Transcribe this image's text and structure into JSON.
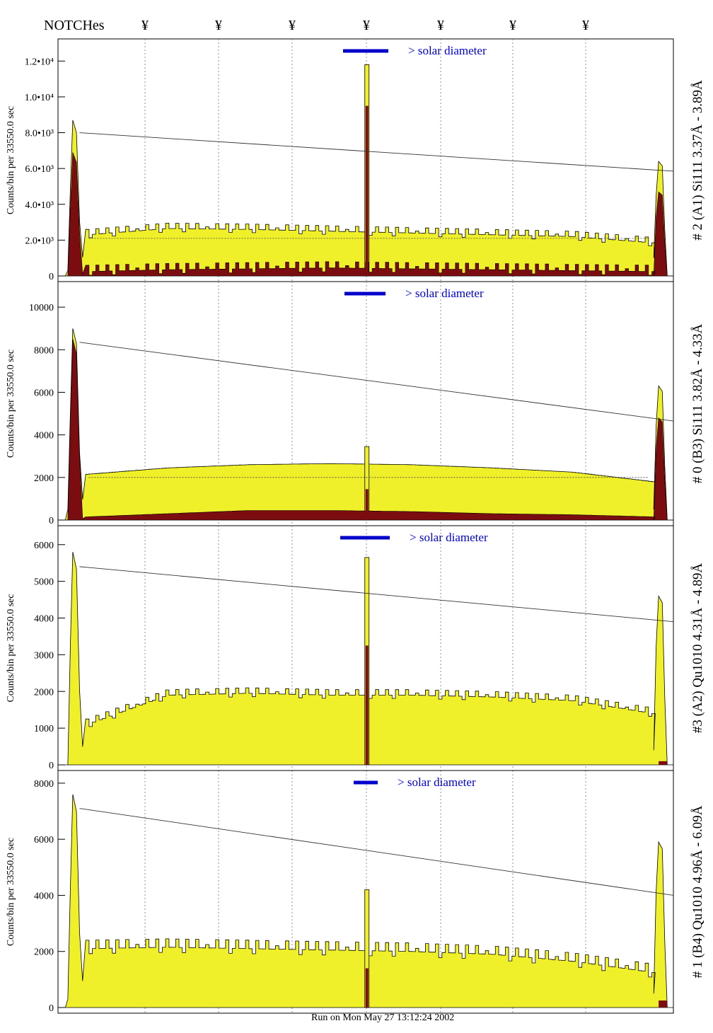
{
  "header": {
    "label": "NOTCHes",
    "marker_glyph": "¥",
    "notch_x": [
      205,
      309,
      413,
      518,
      623,
      725,
      828
    ]
  },
  "footer": {
    "text": "Run on Mon May 27 13:12:24 2002"
  },
  "colors": {
    "fill_light": "#f0f02a",
    "fill_dark": "#7b0c10",
    "annotation_blue": "#0000dd",
    "marker_blue": "#0000cc"
  },
  "annotation_text": "> solar diameter",
  "chart_data": [
    {
      "type": "area",
      "name": "panel-1",
      "ylabel": "Counts/bin per  33550.0 sec",
      "side_label": "# 2 (A1) Si111  3.37Å - 3.89Å",
      "ylim": [
        0,
        13000
      ],
      "ytick_values": [
        0,
        2000,
        4000,
        6000,
        8000,
        10000,
        12000
      ],
      "ytick_labels": [
        "0",
        "2.0•10³",
        "4.0•10³",
        "6.0•10³",
        "8.0•10³",
        "1.0•10⁴",
        "1.2•10⁴"
      ],
      "grid": true,
      "light_series": {
        "left_peak": 8700,
        "left_base": 300,
        "plateau": [
          2300,
          2650,
          2600,
          2500,
          2400,
          2300,
          2200,
          1850
        ],
        "right_peak": 6400,
        "right_base": 1000,
        "center_spike": 11800,
        "tooth": 300
      },
      "dark_series": {
        "left_peak": 6900,
        "left_base": 0,
        "plateau": [
          250,
          350,
          400,
          450,
          400,
          350,
          300,
          250
        ],
        "right_peak": 4700,
        "right_base": 0,
        "center_spike": 9500,
        "tooth": 350
      },
      "fit_line": [
        8000,
        5850
      ],
      "dotted_level": 2100
    },
    {
      "type": "area",
      "name": "panel-2",
      "ylabel": "Counts/bin per  33550.0 sec",
      "side_label": "# 0 (B3) Si111  3.82Å - 4.33Å",
      "ylim": [
        0,
        11000
      ],
      "ytick_values": [
        0,
        2000,
        4000,
        6000,
        8000,
        10000
      ],
      "ytick_labels": [
        "0",
        "2000",
        "4000",
        "6000",
        "8000",
        "10000"
      ],
      "grid": true,
      "light_series": {
        "left_peak": 9000,
        "left_base": 500,
        "plateau": [
          2150,
          2450,
          2600,
          2650,
          2600,
          2450,
          2250,
          1800
        ],
        "right_peak": 6300,
        "right_base": 500,
        "center_spike": 3450,
        "tooth": 0
      },
      "dark_series": {
        "left_peak": 8500,
        "left_base": 0,
        "plateau": [
          150,
          300,
          450,
          450,
          400,
          300,
          250,
          150
        ],
        "right_peak": 4800,
        "right_base": 0,
        "center_spike": 1450,
        "tooth": 0
      },
      "fit_line": [
        8350,
        4650
      ],
      "dotted_level": 2000
    },
    {
      "type": "area",
      "name": "panel-3",
      "ylabel": "Counts/bin per  33550.0 sec",
      "side_label": "#3 (A2) Qu1010  4.31Å - 4.89Å",
      "ylim": [
        0,
        6400
      ],
      "ytick_values": [
        0,
        1000,
        2000,
        3000,
        4000,
        5000,
        6000
      ],
      "ytick_labels": [
        "0",
        "1000",
        "2000",
        "3000",
        "4000",
        "5000",
        "6000"
      ],
      "grid": true,
      "light_series": {
        "left_peak": 5800,
        "left_base": 0,
        "plateau": [
          1100,
          1900,
          1950,
          1900,
          1900,
          1850,
          1750,
          1400
        ],
        "right_peak": 4600,
        "right_base": 400,
        "center_spike": 5650,
        "tooth": 150
      },
      "dark_series": {
        "left_peak": 0,
        "left_base": 0,
        "plateau": [
          0,
          0,
          0,
          0,
          0,
          0,
          0,
          0
        ],
        "right_peak": 100,
        "right_base": 0,
        "center_spike": 3250,
        "tooth": 0
      },
      "fit_line": [
        5400,
        3900
      ],
      "dotted_level": 0
    },
    {
      "type": "area",
      "name": "panel-4",
      "ylabel": "Counts/bin per  33550.0 sec",
      "side_label": "# 1 (B4) Qu1010 4.96Å - 6.09Å",
      "ylim": [
        0,
        8300
      ],
      "ytick_values": [
        0,
        2000,
        4000,
        6000,
        8000
      ],
      "ytick_labels": [
        "0",
        "2000",
        "4000",
        "6000",
        "8000"
      ],
      "grid": true,
      "light_series": {
        "left_peak": 7600,
        "left_base": 300,
        "plateau": [
          2100,
          2150,
          2100,
          2050,
          2000,
          1900,
          1650,
          1250
        ],
        "right_peak": 5900,
        "right_base": 500,
        "center_spike": 4200,
        "tooth": 300
      },
      "dark_series": {
        "left_peak": 0,
        "left_base": 0,
        "plateau": [
          0,
          0,
          0,
          0,
          0,
          0,
          0,
          0
        ],
        "right_peak": 250,
        "right_base": 0,
        "center_spike": 1400,
        "tooth": 0
      },
      "fit_line": [
        7100,
        4000
      ],
      "dotted_level": 0
    }
  ]
}
